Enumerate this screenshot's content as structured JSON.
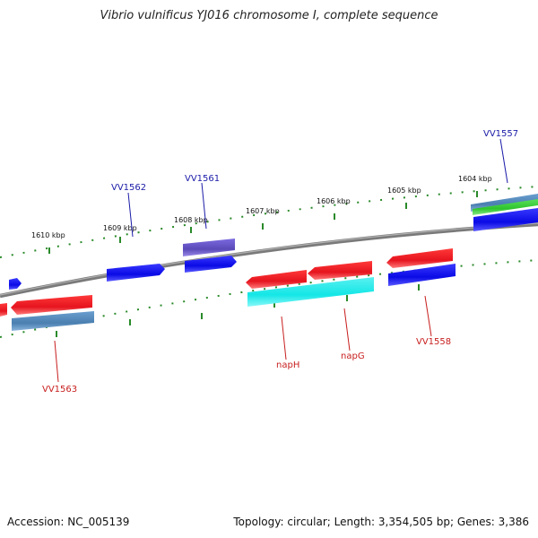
{
  "title": "Vibrio vulnificus YJ016 chromosome I, complete sequence",
  "footer": {
    "accession": "Accession: NC_005139",
    "summary": "Topology: circular; Length: 3,354,505 bp; Genes: 3,386"
  },
  "colors": {
    "backbone": "#808080",
    "tick": "#2a8a2a",
    "forward_label": "#1a1aa8",
    "reverse_label": "#c81e1e",
    "blue": "#0a0ae6",
    "red": "#e6141e",
    "steel": "#4a7fb0",
    "slate": "#6a5acd",
    "cyan": "#14e6e6",
    "green": "#2ec42e"
  },
  "ticks": [
    {
      "label": "1610 kbp"
    },
    {
      "label": "1609 kbp"
    },
    {
      "label": "1608 kbp"
    },
    {
      "label": "1607 kbp"
    },
    {
      "label": "1606 kbp"
    },
    {
      "label": "1605 kbp"
    },
    {
      "label": "1604 kbp"
    }
  ],
  "gene_labels_forward": [
    "VV1562",
    "VV1561",
    "VV1557"
  ],
  "gene_labels_reverse": [
    "VV1563",
    "napH",
    "napG",
    "VV1558"
  ]
}
